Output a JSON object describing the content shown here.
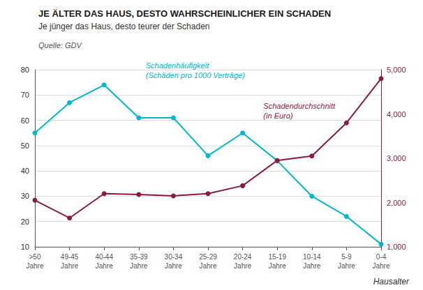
{
  "chart_data": {
    "type": "line",
    "title": "JE ÄLTER DAS HAUS, DESTO WAHRSCHEINLICHER EIN SCHADEN",
    "subtitle": "Je jünger das Haus, desto teurer der Schaden",
    "source": "Quelle: GDV",
    "x_label": "Hausalter",
    "categories": [
      ">50\nJahre",
      "49-45\nJahre",
      "40-44\nJahre",
      "35-39\nJahre",
      "30-34\nJahre",
      "25-29\nJahre",
      "20-24\nJahre",
      "15-19\nJahre",
      "10-14\nJahre",
      "5-9\nJahre",
      "0-4\nJahre"
    ],
    "series": [
      {
        "name": "Schadenhäufigkeit\n(Schäden pro 1000 Verträge)",
        "color": "#00b8cc",
        "values": [
          55,
          67,
          74,
          61,
          61,
          46,
          55,
          44,
          30,
          22,
          11
        ]
      },
      {
        "name": "Schadendurchschnitt\n(in Euro)",
        "color": "#8b1a3c",
        "axis": "y2",
        "values": [
          2050,
          1650,
          2200,
          2180,
          2150,
          2200,
          2380,
          2950,
          3050,
          3800,
          4800
        ]
      }
    ],
    "ylim": [
      10,
      80
    ],
    "yticks": [
      10,
      20,
      30,
      40,
      50,
      60,
      70,
      80
    ],
    "y2lim": [
      1000,
      5000
    ],
    "y2ticks": [
      1000,
      2000,
      3000,
      4000,
      5000
    ],
    "grid": true,
    "marker": "circle"
  }
}
